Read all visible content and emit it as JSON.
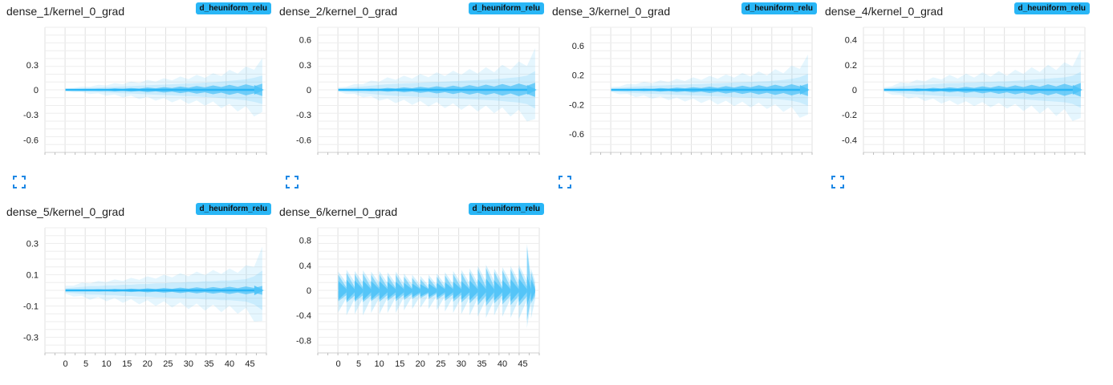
{
  "colors": {
    "accent": "#29b6f6",
    "band": "#4fc3f7",
    "grid": "#e0e0e0",
    "text": "#212121"
  },
  "cards": [
    {
      "title": "dense_1/kernel_0_grad",
      "run": "d_heuniform_relu",
      "icon": "fullscreen-icon"
    },
    {
      "title": "dense_2/kernel_0_grad",
      "run": "d_heuniform_relu",
      "icon": "fullscreen-icon"
    },
    {
      "title": "dense_3/kernel_0_grad",
      "run": "d_heuniform_relu",
      "icon": "fullscreen-icon"
    },
    {
      "title": "dense_4/kernel_0_grad",
      "run": "d_heuniform_relu",
      "icon": "fullscreen-icon"
    },
    {
      "title": "dense_5/kernel_0_grad",
      "run": "d_heuniform_relu",
      "icon": "fullscreen-icon"
    },
    {
      "title": "dense_6/kernel_0_grad",
      "run": "d_heuniform_relu",
      "icon": "fullscreen-icon"
    }
  ],
  "chart_data": [
    {
      "type": "area",
      "title": "dense_1/kernel_0_grad",
      "xlim": [
        -5,
        49
      ],
      "ylim": [
        -0.75,
        0.75
      ],
      "yticks": [
        0.3,
        0,
        -0.3,
        -0.6
      ],
      "ytick_labels": [
        "0.3",
        "0",
        "-0.3",
        "-0.6"
      ],
      "xticks": [],
      "xtick_labels": [],
      "x": [
        0,
        2,
        4,
        6,
        8,
        10,
        12,
        14,
        16,
        18,
        20,
        22,
        24,
        26,
        28,
        30,
        32,
        34,
        36,
        38,
        40,
        42,
        44,
        46,
        48
      ],
      "outer": [
        0.02,
        0.03,
        0.04,
        0.05,
        0.06,
        0.07,
        0.08,
        0.09,
        0.1,
        0.11,
        0.12,
        0.13,
        0.14,
        0.15,
        0.16,
        0.17,
        0.18,
        0.19,
        0.2,
        0.22,
        0.24,
        0.26,
        0.28,
        0.32,
        0.38
      ],
      "inner": [
        0.004,
        0.006,
        0.008,
        0.01,
        0.012,
        0.015,
        0.018,
        0.02,
        0.022,
        0.025,
        0.028,
        0.03,
        0.033,
        0.036,
        0.04,
        0.043,
        0.046,
        0.05,
        0.053,
        0.056,
        0.06,
        0.063,
        0.066,
        0.07,
        0.075
      ]
    },
    {
      "type": "area",
      "title": "dense_2/kernel_0_grad",
      "xlim": [
        -5,
        49
      ],
      "ylim": [
        -0.75,
        0.75
      ],
      "yticks": [
        0.6,
        0.3,
        0,
        -0.3,
        -0.6
      ],
      "ytick_labels": [
        "0.6",
        "0.3",
        "0",
        "-0.3",
        "-0.6"
      ],
      "xticks": [],
      "xtick_labels": [],
      "x": [
        0,
        2,
        4,
        6,
        8,
        10,
        12,
        14,
        16,
        18,
        20,
        22,
        24,
        26,
        28,
        30,
        32,
        34,
        36,
        38,
        40,
        42,
        44,
        46,
        48
      ],
      "outer": [
        0.03,
        0.05,
        0.07,
        0.09,
        0.11,
        0.13,
        0.15,
        0.16,
        0.17,
        0.18,
        0.19,
        0.2,
        0.21,
        0.22,
        0.23,
        0.24,
        0.25,
        0.26,
        0.27,
        0.28,
        0.3,
        0.32,
        0.34,
        0.38,
        0.5
      ],
      "inner": [
        0.005,
        0.007,
        0.01,
        0.013,
        0.016,
        0.02,
        0.023,
        0.026,
        0.03,
        0.033,
        0.036,
        0.04,
        0.043,
        0.046,
        0.05,
        0.053,
        0.056,
        0.06,
        0.063,
        0.066,
        0.07,
        0.073,
        0.076,
        0.08,
        0.085
      ]
    },
    {
      "type": "area",
      "title": "dense_3/kernel_0_grad",
      "xlim": [
        -5,
        49
      ],
      "ylim": [
        -0.85,
        0.85
      ],
      "yticks": [
        0.6,
        0.2,
        -0.2,
        -0.6
      ],
      "ytick_labels": [
        "0.6",
        "0.2",
        "-0.2",
        "-0.6"
      ],
      "xticks": [],
      "xtick_labels": [],
      "x": [
        0,
        2,
        4,
        6,
        8,
        10,
        12,
        14,
        16,
        18,
        20,
        22,
        24,
        26,
        28,
        30,
        32,
        34,
        36,
        38,
        40,
        42,
        44,
        46,
        48
      ],
      "outer": [
        0.04,
        0.06,
        0.08,
        0.1,
        0.11,
        0.12,
        0.13,
        0.14,
        0.15,
        0.16,
        0.17,
        0.18,
        0.19,
        0.2,
        0.21,
        0.22,
        0.23,
        0.24,
        0.25,
        0.26,
        0.28,
        0.3,
        0.33,
        0.38,
        0.48
      ],
      "inner": [
        0.006,
        0.009,
        0.012,
        0.015,
        0.018,
        0.021,
        0.024,
        0.027,
        0.03,
        0.033,
        0.036,
        0.04,
        0.043,
        0.046,
        0.05,
        0.053,
        0.056,
        0.06,
        0.063,
        0.066,
        0.07,
        0.073,
        0.076,
        0.08,
        0.085
      ]
    },
    {
      "type": "area",
      "title": "dense_4/kernel_0_grad",
      "xlim": [
        -5,
        49
      ],
      "ylim": [
        -0.5,
        0.5
      ],
      "yticks": [
        0.4,
        0.2,
        0,
        -0.2,
        -0.4
      ],
      "ytick_labels": [
        "0.4",
        "0.2",
        "0",
        "-0.2",
        "-0.4"
      ],
      "xticks": [],
      "xtick_labels": [],
      "x": [
        0,
        2,
        4,
        6,
        8,
        10,
        12,
        14,
        16,
        18,
        20,
        22,
        24,
        26,
        28,
        30,
        32,
        34,
        36,
        38,
        40,
        42,
        44,
        46,
        48
      ],
      "outer": [
        0.02,
        0.04,
        0.06,
        0.07,
        0.08,
        0.09,
        0.1,
        0.11,
        0.12,
        0.12,
        0.13,
        0.13,
        0.14,
        0.14,
        0.15,
        0.15,
        0.16,
        0.17,
        0.18,
        0.19,
        0.2,
        0.21,
        0.22,
        0.25,
        0.32
      ],
      "inner": [
        0.004,
        0.006,
        0.008,
        0.01,
        0.012,
        0.014,
        0.016,
        0.018,
        0.02,
        0.022,
        0.024,
        0.026,
        0.028,
        0.03,
        0.032,
        0.034,
        0.036,
        0.038,
        0.04,
        0.042,
        0.044,
        0.046,
        0.048,
        0.05,
        0.055
      ]
    },
    {
      "type": "area",
      "title": "dense_5/kernel_0_grad",
      "xlim": [
        -5,
        49
      ],
      "ylim": [
        -0.4,
        0.4
      ],
      "yticks": [
        0.3,
        0.1,
        -0.1,
        -0.3
      ],
      "ytick_labels": [
        "0.3",
        "0.1",
        "-0.1",
        "-0.3"
      ],
      "xticks": [
        0,
        5,
        10,
        15,
        20,
        25,
        30,
        35,
        40,
        45
      ],
      "xtick_labels": [
        "0",
        "5",
        "10",
        "15",
        "20",
        "25",
        "30",
        "35",
        "40",
        "45"
      ],
      "x": [
        0,
        2,
        4,
        6,
        8,
        10,
        12,
        14,
        16,
        18,
        20,
        22,
        24,
        26,
        28,
        30,
        32,
        34,
        36,
        38,
        40,
        42,
        44,
        46,
        48
      ],
      "outer": [
        0.03,
        0.04,
        0.05,
        0.06,
        0.06,
        0.07,
        0.07,
        0.08,
        0.08,
        0.09,
        0.09,
        0.1,
        0.1,
        0.11,
        0.11,
        0.12,
        0.12,
        0.13,
        0.13,
        0.14,
        0.14,
        0.15,
        0.16,
        0.2,
        0.28
      ],
      "inner": [
        0.003,
        0.004,
        0.005,
        0.006,
        0.007,
        0.008,
        0.009,
        0.01,
        0.011,
        0.012,
        0.013,
        0.014,
        0.015,
        0.016,
        0.017,
        0.018,
        0.019,
        0.02,
        0.021,
        0.022,
        0.023,
        0.024,
        0.025,
        0.026,
        0.028
      ]
    },
    {
      "type": "area",
      "title": "dense_6/kernel_0_grad",
      "xlim": [
        -5,
        49
      ],
      "ylim": [
        -1.0,
        1.0
      ],
      "yticks": [
        0.8,
        0.4,
        0,
        -0.4,
        -0.8
      ],
      "ytick_labels": [
        "0.8",
        "0.4",
        "0",
        "-0.4",
        "-0.8"
      ],
      "xticks": [
        0,
        5,
        10,
        15,
        20,
        25,
        30,
        35,
        40,
        45
      ],
      "xtick_labels": [
        "0",
        "5",
        "10",
        "15",
        "20",
        "25",
        "30",
        "35",
        "40",
        "45"
      ],
      "x": [
        0,
        2,
        4,
        6,
        8,
        10,
        12,
        14,
        16,
        18,
        20,
        22,
        24,
        26,
        28,
        30,
        32,
        34,
        36,
        38,
        40,
        42,
        44,
        46,
        48
      ],
      "peaks": [
        0,
        2,
        4,
        6,
        8,
        10,
        12,
        14,
        16,
        18,
        20,
        22,
        24,
        26,
        28,
        30,
        32,
        34,
        36,
        38,
        40,
        42,
        44,
        46,
        47
      ],
      "peak_heights": [
        0.25,
        0.28,
        0.26,
        0.27,
        0.25,
        0.26,
        0.24,
        0.25,
        0.22,
        0.2,
        0.18,
        0.2,
        0.22,
        0.24,
        0.26,
        0.28,
        0.3,
        0.34,
        0.36,
        0.3,
        0.32,
        0.34,
        0.36,
        0.7,
        0.3
      ],
      "outer": [
        0.35,
        0.4,
        0.38,
        0.4,
        0.36,
        0.38,
        0.36,
        0.36,
        0.32,
        0.3,
        0.28,
        0.3,
        0.32,
        0.34,
        0.36,
        0.38,
        0.4,
        0.42,
        0.44,
        0.4,
        0.42,
        0.44,
        0.46,
        0.6,
        0.45
      ],
      "inner": [
        0.15,
        0.17,
        0.16,
        0.16,
        0.15,
        0.15,
        0.14,
        0.14,
        0.12,
        0.11,
        0.1,
        0.11,
        0.12,
        0.13,
        0.14,
        0.15,
        0.16,
        0.18,
        0.19,
        0.16,
        0.17,
        0.18,
        0.19,
        0.25,
        0.18
      ]
    }
  ]
}
